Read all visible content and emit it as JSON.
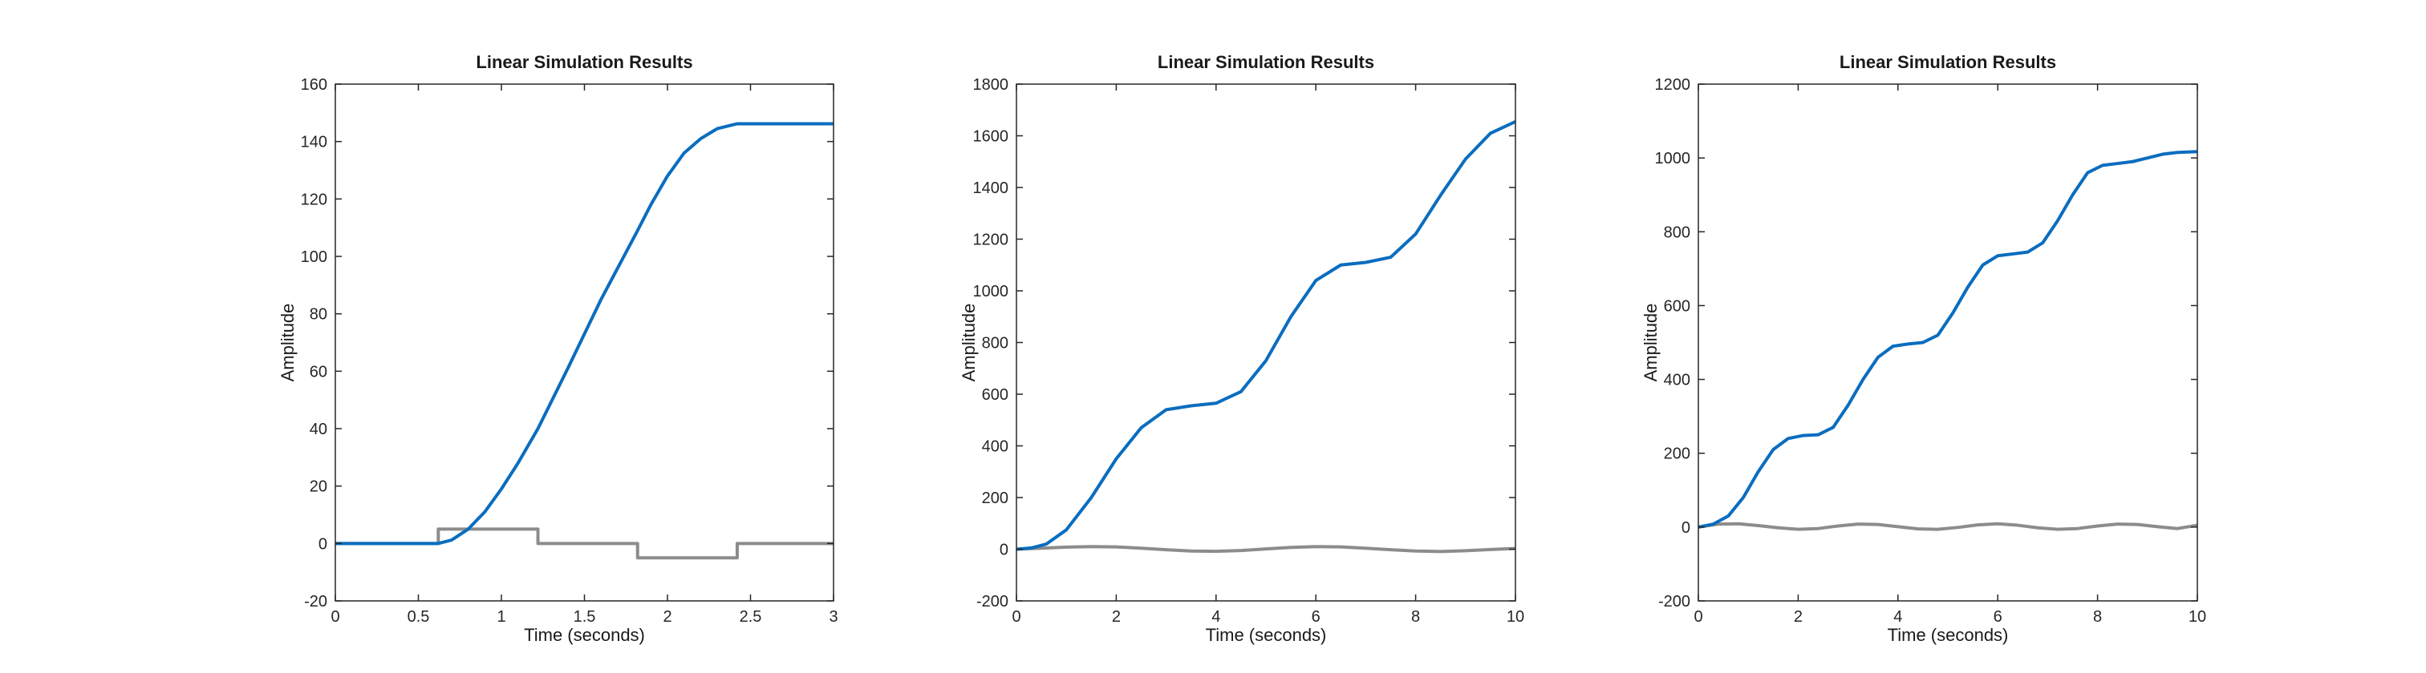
{
  "figure": {
    "background": "#ffffff"
  },
  "chart_data": [
    {
      "type": "line",
      "title": "Linear Simulation Results",
      "xlabel": "Time (seconds)",
      "ylabel": "Amplitude",
      "xlim": [
        0,
        3
      ],
      "ylim": [
        -20,
        160
      ],
      "xticks": [
        0,
        0.5,
        1,
        1.5,
        2,
        2.5,
        3
      ],
      "yticks": [
        -20,
        0,
        20,
        40,
        60,
        80,
        100,
        120,
        140,
        160
      ],
      "grid": false,
      "series": [
        {
          "role": "input",
          "color": "#8c8c8c",
          "x": [
            0,
            0.62,
            0.62,
            1.22,
            1.22,
            1.82,
            1.82,
            2.42,
            2.42,
            3
          ],
          "y": [
            0,
            0,
            5,
            5,
            0,
            0,
            -5,
            -5,
            0,
            0
          ]
        },
        {
          "role": "response",
          "color": "#0a6dbf",
          "x": [
            0,
            0.62,
            0.7,
            0.8,
            0.9,
            1.0,
            1.1,
            1.22,
            1.4,
            1.6,
            1.82,
            1.9,
            2.0,
            2.1,
            2.2,
            2.3,
            2.42,
            2.6,
            2.8,
            3.0
          ],
          "y": [
            0,
            0,
            1.2,
            5,
            11,
            19,
            28,
            40,
            61,
            85,
            109,
            118,
            128,
            136,
            141,
            144.5,
            146.2,
            146.2,
            146.2,
            146.2
          ]
        }
      ]
    },
    {
      "type": "line",
      "title": "Linear Simulation Results",
      "xlabel": "Time (seconds)",
      "ylabel": "Amplitude",
      "xlim": [
        0,
        10
      ],
      "ylim": [
        -200,
        1800
      ],
      "xticks": [
        0,
        2,
        4,
        6,
        8,
        10
      ],
      "yticks": [
        -200,
        0,
        200,
        400,
        600,
        800,
        1000,
        1200,
        1400,
        1600,
        1800
      ],
      "grid": false,
      "series": [
        {
          "role": "input",
          "color": "#8c8c8c",
          "x": [
            0,
            0.5,
            1,
            1.5,
            2,
            2.5,
            3,
            3.5,
            4,
            4.5,
            5,
            5.5,
            6,
            6.5,
            7,
            7.5,
            8,
            8.5,
            9,
            9.5,
            10
          ],
          "y": [
            0,
            4,
            8,
            10,
            9,
            4,
            -2,
            -7,
            -8,
            -5,
            1,
            7,
            10,
            9,
            4,
            -2,
            -7,
            -9,
            -6,
            -1,
            3
          ]
        },
        {
          "role": "response",
          "color": "#0a6dbf",
          "x": [
            0,
            0.3,
            0.6,
            1,
            1.5,
            2,
            2.5,
            3,
            3.5,
            4,
            4.5,
            5,
            5.5,
            6,
            6.5,
            7,
            7.5,
            8,
            8.5,
            9,
            9.5,
            10
          ],
          "y": [
            0,
            5,
            20,
            75,
            200,
            350,
            470,
            540,
            555,
            565,
            610,
            730,
            900,
            1040,
            1100,
            1110,
            1130,
            1220,
            1370,
            1510,
            1610,
            1655
          ]
        }
      ]
    },
    {
      "type": "line",
      "title": "Linear Simulation Results",
      "xlabel": "Time (seconds)",
      "ylabel": "Amplitude",
      "xlim": [
        0,
        10
      ],
      "ylim": [
        -200,
        1200
      ],
      "xticks": [
        0,
        2,
        4,
        6,
        8,
        10
      ],
      "yticks": [
        -200,
        0,
        200,
        400,
        600,
        800,
        1000,
        1200
      ],
      "grid": false,
      "series": [
        {
          "role": "input",
          "color": "#8c8c8c",
          "x": [
            0,
            0.4,
            0.8,
            1.2,
            1.6,
            2.0,
            2.4,
            2.8,
            3.2,
            3.6,
            4.0,
            4.4,
            4.8,
            5.2,
            5.6,
            6.0,
            6.4,
            6.8,
            7.2,
            7.6,
            8.0,
            8.4,
            8.8,
            9.2,
            9.6,
            10
          ],
          "y": [
            0,
            8,
            9,
            4,
            -2,
            -6,
            -4,
            3,
            8,
            7,
            1,
            -5,
            -6,
            -1,
            6,
            9,
            5,
            -2,
            -6,
            -4,
            3,
            8,
            7,
            1,
            -4,
            5
          ]
        },
        {
          "role": "response",
          "color": "#0a6dbf",
          "x": [
            0,
            0.3,
            0.6,
            0.9,
            1.2,
            1.5,
            1.8,
            2.1,
            2.4,
            2.7,
            3.0,
            3.3,
            3.6,
            3.9,
            4.2,
            4.5,
            4.8,
            5.1,
            5.4,
            5.7,
            6.0,
            6.3,
            6.6,
            6.9,
            7.2,
            7.5,
            7.8,
            8.1,
            8.4,
            8.7,
            9.0,
            9.3,
            9.6,
            10
          ],
          "y": [
            0,
            8,
            30,
            80,
            150,
            210,
            240,
            248,
            250,
            270,
            330,
            400,
            460,
            490,
            496,
            500,
            520,
            580,
            650,
            710,
            735,
            740,
            745,
            770,
            830,
            900,
            960,
            980,
            985,
            990,
            1000,
            1010,
            1015,
            1017
          ]
        }
      ]
    }
  ]
}
